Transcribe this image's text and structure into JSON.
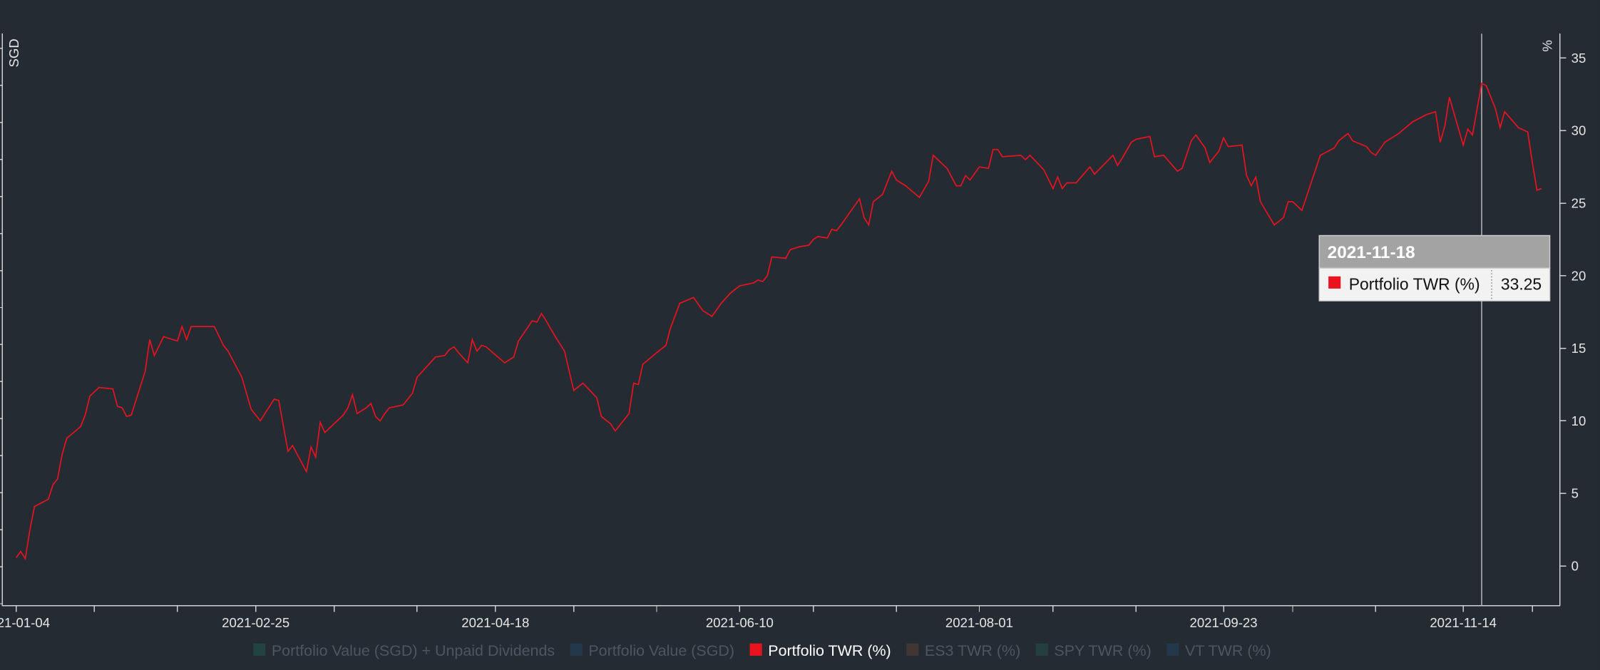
{
  "chart_data": {
    "type": "line",
    "y_label": "SGD",
    "y2_label": "%",
    "x": [
      "2021-01-04",
      "2021-01-05",
      "2021-01-06",
      "2021-01-07",
      "2021-01-08",
      "2021-01-11",
      "2021-01-12",
      "2021-01-13",
      "2021-01-14",
      "2021-01-15",
      "2021-01-18",
      "2021-01-19",
      "2021-01-20",
      "2021-01-22",
      "2021-01-25",
      "2021-01-26",
      "2021-01-27",
      "2021-01-28",
      "2021-01-29",
      "2021-02-01",
      "2021-02-02",
      "2021-02-03",
      "2021-02-05",
      "2021-02-08",
      "2021-02-09",
      "2021-02-10",
      "2021-02-11",
      "2021-02-16",
      "2021-02-18",
      "2021-02-19",
      "2021-02-22",
      "2021-02-24",
      "2021-02-26",
      "2021-03-01",
      "2021-03-02",
      "2021-03-04",
      "2021-03-05",
      "2021-03-08",
      "2021-03-09",
      "2021-03-10",
      "2021-03-11",
      "2021-03-12",
      "2021-03-16",
      "2021-03-17",
      "2021-03-18",
      "2021-03-19",
      "2021-03-21",
      "2021-03-22",
      "2021-03-23",
      "2021-03-24",
      "2021-03-25",
      "2021-03-26",
      "2021-03-29",
      "2021-03-31",
      "2021-04-01",
      "2021-04-05",
      "2021-04-07",
      "2021-04-08",
      "2021-04-09",
      "2021-04-10",
      "2021-04-12",
      "2021-04-13",
      "2021-04-14",
      "2021-04-15",
      "2021-04-16",
      "2021-04-20",
      "2021-04-22",
      "2021-04-23",
      "2021-04-26",
      "2021-04-27",
      "2021-04-28",
      "2021-04-29",
      "2021-05-01",
      "2021-05-03",
      "2021-05-05",
      "2021-05-07",
      "2021-05-10",
      "2021-05-11",
      "2021-05-13",
      "2021-05-14",
      "2021-05-17",
      "2021-05-18",
      "2021-05-19",
      "2021-05-20",
      "2021-05-23",
      "2021-05-25",
      "2021-05-26",
      "2021-05-28",
      "2021-05-31",
      "2021-06-02",
      "2021-06-04",
      "2021-06-06",
      "2021-06-08",
      "2021-06-10",
      "2021-06-13",
      "2021-06-14",
      "2021-06-15",
      "2021-06-16",
      "2021-06-17",
      "2021-06-20",
      "2021-06-21",
      "2021-06-23",
      "2021-06-25",
      "2021-06-26",
      "2021-06-27",
      "2021-06-29",
      "2021-06-30",
      "2021-07-01",
      "2021-07-02",
      "2021-07-06",
      "2021-07-07",
      "2021-07-08",
      "2021-07-09",
      "2021-07-11",
      "2021-07-13",
      "2021-07-14",
      "2021-07-16",
      "2021-07-19",
      "2021-07-21",
      "2021-07-22",
      "2021-07-25",
      "2021-07-27",
      "2021-07-28",
      "2021-07-29",
      "2021-07-30",
      "2021-08-01",
      "2021-08-03",
      "2021-08-04",
      "2021-08-05",
      "2021-08-06",
      "2021-08-10",
      "2021-08-11",
      "2021-08-12",
      "2021-08-15",
      "2021-08-17",
      "2021-08-18",
      "2021-08-19",
      "2021-08-20",
      "2021-08-22",
      "2021-08-25",
      "2021-08-26",
      "2021-08-30",
      "2021-08-31",
      "2021-09-01",
      "2021-09-03",
      "2021-09-04",
      "2021-09-07",
      "2021-09-08",
      "2021-09-10",
      "2021-09-13",
      "2021-09-14",
      "2021-09-16",
      "2021-09-17",
      "2021-09-19",
      "2021-09-20",
      "2021-09-22",
      "2021-09-23",
      "2021-09-24",
      "2021-09-27",
      "2021-09-28",
      "2021-09-29",
      "2021-09-30",
      "2021-10-01",
      "2021-10-04",
      "2021-10-06",
      "2021-10-07",
      "2021-10-08",
      "2021-10-10",
      "2021-10-12",
      "2021-10-14",
      "2021-10-17",
      "2021-10-18",
      "2021-10-20",
      "2021-10-21",
      "2021-10-24",
      "2021-10-25",
      "2021-10-26",
      "2021-10-28",
      "2021-10-29",
      "2021-10-31",
      "2021-11-03",
      "2021-11-06",
      "2021-11-08",
      "2021-11-09",
      "2021-11-10",
      "2021-11-11",
      "2021-11-14",
      "2021-11-15",
      "2021-11-16",
      "2021-11-18",
      "2021-11-19",
      "2021-11-21",
      "2021-11-22",
      "2021-11-23",
      "2021-11-26",
      "2021-11-28",
      "2021-11-29",
      "2021-11-30",
      "2021-12-01"
    ],
    "series": [
      {
        "name": "Portfolio TWR (%)",
        "color": "#e8131f",
        "axis": "y2",
        "values": [
          0.56,
          1.0,
          0.5,
          2.5,
          4.1,
          4.6,
          5.6,
          6.0,
          7.7,
          8.8,
          9.6,
          10.4,
          11.7,
          12.3,
          12.2,
          11.0,
          10.9,
          10.3,
          10.4,
          13.4,
          15.6,
          14.5,
          15.8,
          15.5,
          16.5,
          15.6,
          16.5,
          16.5,
          15.2,
          14.8,
          13.0,
          10.8,
          10.0,
          11.5,
          11.4,
          7.9,
          8.3,
          6.5,
          8.2,
          7.5,
          9.9,
          9.2,
          10.4,
          10.9,
          11.8,
          10.5,
          10.9,
          11.2,
          10.3,
          10.0,
          10.5,
          10.9,
          11.1,
          11.9,
          13.0,
          14.4,
          14.5,
          14.9,
          15.1,
          14.7,
          14.0,
          15.6,
          14.8,
          15.2,
          15.1,
          14.0,
          14.4,
          15.5,
          16.9,
          16.8,
          17.4,
          16.9,
          15.8,
          14.8,
          12.1,
          12.6,
          11.6,
          10.3,
          9.8,
          9.3,
          10.5,
          12.6,
          12.5,
          13.9,
          14.7,
          15.2,
          16.4,
          18.1,
          18.5,
          17.6,
          17.2,
          18.1,
          18.8,
          19.3,
          19.5,
          19.7,
          19.6,
          20.0,
          21.3,
          21.2,
          21.8,
          22.0,
          22.1,
          22.5,
          22.7,
          22.6,
          23.2,
          23.1,
          23.5,
          25.3,
          24.0,
          23.5,
          25.1,
          25.6,
          27.2,
          26.6,
          26.2,
          25.4,
          26.5,
          28.3,
          27.4,
          26.2,
          26.2,
          26.9,
          26.6,
          27.5,
          27.4,
          28.7,
          28.7,
          28.2,
          28.3,
          28.0,
          28.3,
          27.3,
          26.0,
          26.8,
          26.0,
          26.4,
          26.4,
          27.5,
          27.0,
          28.3,
          27.6,
          28.1,
          29.2,
          29.4,
          29.6,
          28.2,
          28.3,
          27.2,
          27.4,
          29.3,
          29.7,
          28.8,
          27.8,
          28.6,
          29.5,
          28.9,
          29.0,
          26.9,
          26.2,
          26.8,
          25.1,
          23.5,
          24.0,
          25.1,
          25.1,
          24.5,
          26.4,
          28.3,
          28.8,
          29.3,
          29.8,
          29.3,
          28.9,
          28.5,
          28.3,
          29.2,
          29.4,
          29.8,
          30.6,
          31.1,
          31.3,
          29.2,
          30.3,
          32.3,
          29.0,
          30.1,
          29.7,
          33.25,
          33.1,
          31.5,
          30.2,
          31.3,
          30.2,
          29.9,
          27.8,
          25.9,
          26.0
        ]
      }
    ],
    "xlim": [
      "2021-01-01",
      "2021-12-05"
    ],
    "xticks": [
      "2021-01-04",
      "2021-02-25",
      "2021-04-18",
      "2021-06-10",
      "2021-08-01",
      "2021-09-23",
      "2021-11-14"
    ],
    "xminorticks": [
      "2021-01-21",
      "2021-02-08",
      "2021-03-14",
      "2021-04-01",
      "2021-05-05",
      "2021-05-23",
      "2021-06-26",
      "2021-07-14",
      "2021-08-17",
      "2021-09-04",
      "2021-10-08",
      "2021-10-26",
      "2021-11-29"
    ],
    "y2lim": [
      -2.74,
      36.68
    ],
    "y2ticks": [
      0,
      5,
      10,
      15,
      20,
      25,
      30,
      35
    ],
    "legend": [
      {
        "name": "Portfolio Value (SGD) + Unpaid Dividends",
        "color": "#234343",
        "hidden": true
      },
      {
        "name": "Portfolio Value (SGD)",
        "color": "#24384c",
        "hidden": true
      },
      {
        "name": "Portfolio TWR (%)",
        "color": "#e8131f",
        "hidden": false
      },
      {
        "name": "ES3 TWR (%)",
        "color": "#413634",
        "hidden": true
      },
      {
        "name": "SPY TWR (%)",
        "color": "#243f3f",
        "hidden": true
      },
      {
        "name": "VT TWR (%)",
        "color": "#24384c",
        "hidden": true
      }
    ],
    "tooltip_x": "2021-11-18"
  }
}
